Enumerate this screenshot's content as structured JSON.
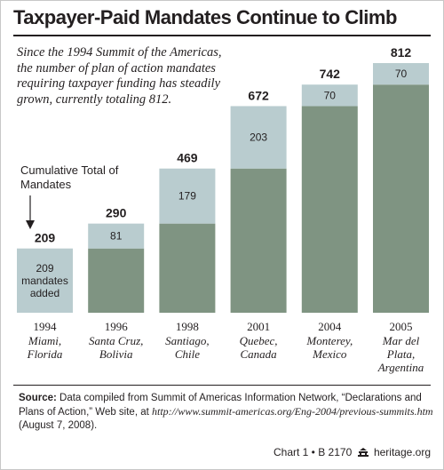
{
  "chart_data": {
    "type": "bar",
    "stacked": true,
    "title": "Taxpayer-Paid Mandates Continue to Climb",
    "subtitle": "Since the 1994 Summit of the Americas, the number of plan of action mandates requiring taxpayer funding has steadily grown, currently totaling 812.",
    "legend_label": "Cumulative Total of Mandates",
    "categories": [
      "1994",
      "1996",
      "1998",
      "2001",
      "2004",
      "2005"
    ],
    "locations": [
      [
        "Miami,",
        "Florida"
      ],
      [
        "Santa Cruz,",
        "Bolivia"
      ],
      [
        "Santiago,",
        "Chile"
      ],
      [
        "Quebec,",
        "Canada"
      ],
      [
        "Monterey,",
        "Mexico"
      ],
      [
        "Mar del",
        "Plata,",
        "Argentina"
      ]
    ],
    "totals": [
      209,
      290,
      469,
      672,
      742,
      812
    ],
    "series": [
      {
        "values": [
          0,
          209,
          290,
          469,
          672,
          742
        ],
        "color": "#7f9482"
      },
      {
        "values": [
          209,
          81,
          179,
          203,
          70,
          70
        ],
        "color": "#b9cccf"
      }
    ],
    "new_labels": [
      [
        "209",
        "mandates",
        "added"
      ],
      [
        "81"
      ],
      [
        "179"
      ],
      [
        "203"
      ],
      [
        "70"
      ],
      [
        "70"
      ]
    ],
    "ylim": [
      0,
      812
    ],
    "grid": false
  },
  "source": {
    "label": "Source:",
    "text": "Data compiled from Summit of Americas Information Network, “Declarations and Plans of Action,” Web site, at",
    "url": "http://www.summit-americas.org/Eng-2004/previous-summits.htm",
    "date": "(August 7, 2008)."
  },
  "credit": {
    "chart": "Chart 1 • B 2170",
    "site": "heritage.org"
  }
}
